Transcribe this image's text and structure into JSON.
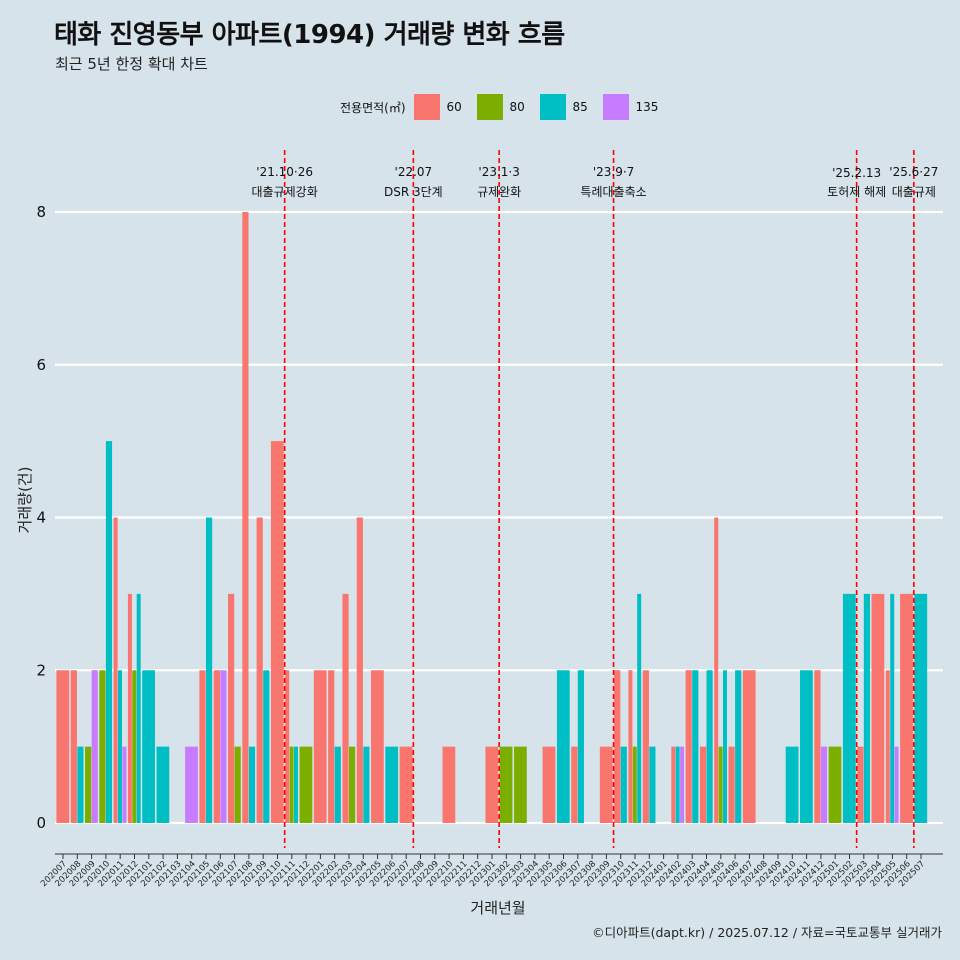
{
  "title": "태화 진영동부 아파트(1994) 거래량 변화 흐름",
  "subtitle": "최근 5년 한정 확대 차트",
  "caption": "©디아파트(dapt.kr) / 2025.07.12 / 자료=국토교통부 실거래가",
  "legend": {
    "title": "전용면적(㎡)",
    "items": [
      {
        "label": "60",
        "color": "#F8766D"
      },
      {
        "label": "80",
        "color": "#7CAE00"
      },
      {
        "label": "85",
        "color": "#00BFC4"
      },
      {
        "label": "135",
        "color": "#C77CFF"
      }
    ]
  },
  "chart_data": {
    "type": "bar",
    "title": "태화 진영동부 아파트(1994) 거래량 변화 흐름",
    "subtitle": "최근 5년 한정 확대 차트",
    "xlabel": "거래년월",
    "ylabel": "거래량(건)",
    "ylim": [
      0,
      8
    ],
    "yticks": [
      0,
      2,
      4,
      6,
      8
    ],
    "grid": "horizontal",
    "legend_position": "top",
    "categories": [
      "202007",
      "202008",
      "202009",
      "202010",
      "202011",
      "202012",
      "202101",
      "202102",
      "202103",
      "202104",
      "202105",
      "202106",
      "202107",
      "202108",
      "202109",
      "202110",
      "202111",
      "202112",
      "202201",
      "202202",
      "202203",
      "202204",
      "202205",
      "202206",
      "202207",
      "202208",
      "202209",
      "202210",
      "202211",
      "202212",
      "202301",
      "202302",
      "202303",
      "202304",
      "202305",
      "202306",
      "202307",
      "202308",
      "202309",
      "202310",
      "202311",
      "202312",
      "202401",
      "202402",
      "202403",
      "202404",
      "202405",
      "202406",
      "202407",
      "202408",
      "202409",
      "202410",
      "202411",
      "202412",
      "202501",
      "202502",
      "202503",
      "202504",
      "202505",
      "202506",
      "202507"
    ],
    "series": [
      {
        "name": "60",
        "color": "#F8766D",
        "values": [
          2,
          2,
          0,
          0,
          4,
          3,
          0,
          0,
          0,
          0,
          2,
          2,
          3,
          8,
          4,
          5,
          2,
          0,
          2,
          2,
          3,
          4,
          2,
          0,
          1,
          0,
          0,
          1,
          0,
          0,
          1,
          0,
          0,
          0,
          1,
          0,
          1,
          0,
          1,
          2,
          2,
          2,
          0,
          1,
          2,
          1,
          4,
          1,
          2,
          0,
          0,
          0,
          0,
          2,
          0,
          0,
          1,
          3,
          2,
          3,
          0
        ]
      },
      {
        "name": "80",
        "color": "#7CAE00",
        "values": [
          0,
          0,
          1,
          2,
          0,
          2,
          0,
          0,
          0,
          0,
          0,
          0,
          1,
          0,
          0,
          0,
          1,
          1,
          0,
          0,
          1,
          0,
          0,
          0,
          0,
          0,
          0,
          0,
          0,
          0,
          0,
          1,
          1,
          0,
          0,
          0,
          0,
          0,
          0,
          0,
          1,
          0,
          0,
          0,
          0,
          0,
          1,
          0,
          0,
          0,
          0,
          0,
          0,
          0,
          1,
          0,
          0,
          0,
          0,
          0,
          0
        ]
      },
      {
        "name": "85",
        "color": "#00BFC4",
        "values": [
          0,
          1,
          0,
          5,
          2,
          3,
          2,
          1,
          0,
          0,
          4,
          0,
          0,
          1,
          2,
          0,
          1,
          0,
          0,
          1,
          0,
          1,
          0,
          1,
          0,
          0,
          0,
          0,
          0,
          0,
          0,
          0,
          0,
          0,
          0,
          2,
          2,
          0,
          0,
          1,
          3,
          1,
          0,
          1,
          2,
          2,
          2,
          2,
          0,
          0,
          0,
          1,
          2,
          0,
          0,
          3,
          3,
          0,
          3,
          0,
          3
        ]
      },
      {
        "name": "135",
        "color": "#C77CFF",
        "values": [
          0,
          0,
          2,
          0,
          1,
          0,
          0,
          0,
          0,
          1,
          0,
          2,
          0,
          0,
          0,
          0,
          0,
          0,
          0,
          0,
          0,
          0,
          0,
          0,
          0,
          0,
          0,
          0,
          0,
          0,
          0,
          0,
          0,
          0,
          0,
          0,
          0,
          0,
          0,
          0,
          0,
          0,
          0,
          1,
          0,
          0,
          0,
          0,
          0,
          0,
          0,
          0,
          0,
          1,
          0,
          0,
          0,
          0,
          1,
          0,
          0
        ]
      }
    ],
    "annotations": [
      {
        "x": "202110",
        "date": "'21.10·26",
        "label": "대출규제강화"
      },
      {
        "x": "202207",
        "date": "'22.07",
        "label": "DSR 3단계"
      },
      {
        "x": "202301",
        "date": "'23.1·3",
        "label": "규제완화"
      },
      {
        "x": "202309",
        "date": "'23.9·7",
        "label": "특례대출축소"
      },
      {
        "x": "202502",
        "date": "'25.2.13",
        "label": "토허제 해제"
      },
      {
        "x": "202506",
        "date": "'25.6·27",
        "label": "대출규제"
      }
    ]
  }
}
